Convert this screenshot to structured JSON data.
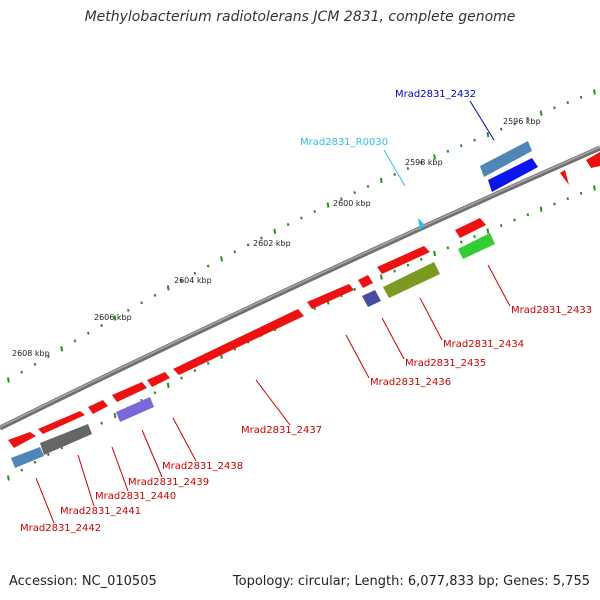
{
  "header": {
    "title": "Methylobacterium radiotolerans JCM 2831, complete genome"
  },
  "footer": {
    "accession": "Accession: NC_010505",
    "topology": "Topology: circular; Length: 6,077,833 bp; Genes: 5,755"
  },
  "colors": {
    "backbone": "#808080",
    "tick": "#2e8b22",
    "forward_gene": "#ee1111",
    "label_red": "#cc0000",
    "label_blue": "#0000cc",
    "label_cyan": "#33bbee"
  },
  "scale_labels": [
    "2596 kbp",
    "2598 kbp",
    "2600 kbp",
    "2602 kbp",
    "2604 kbp",
    "2606 kbp",
    "2608 kbp"
  ],
  "gene_labels": [
    {
      "name": "Mrad2831_2432",
      "color": "#0000cc"
    },
    {
      "name": "Mrad2831_R0030",
      "color": "#33bbee"
    },
    {
      "name": "Mrad2831_2433",
      "color": "#cc0000"
    },
    {
      "name": "Mrad2831_2434",
      "color": "#cc0000"
    },
    {
      "name": "Mrad2831_2435",
      "color": "#cc0000"
    },
    {
      "name": "Mrad2831_2436",
      "color": "#cc0000"
    },
    {
      "name": "Mrad2831_2437",
      "color": "#cc0000"
    },
    {
      "name": "Mrad2831_2438",
      "color": "#cc0000"
    },
    {
      "name": "Mrad2831_2439",
      "color": "#cc0000"
    },
    {
      "name": "Mrad2831_2440",
      "color": "#cc0000"
    },
    {
      "name": "Mrad2831_2441",
      "color": "#cc0000"
    },
    {
      "name": "Mrad2831_2442",
      "color": "#cc0000"
    }
  ]
}
